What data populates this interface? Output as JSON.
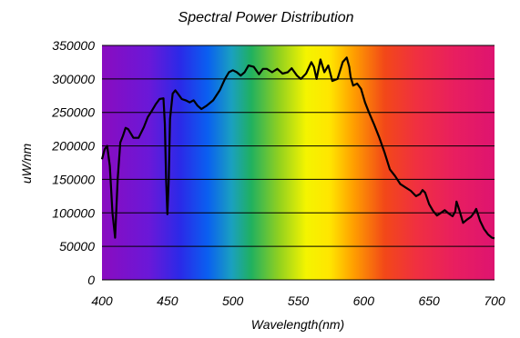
{
  "chart_data": {
    "type": "line",
    "title": "Spectral Power Distribution",
    "xlabel": "Wavelength(nm)",
    "ylabel": "uW/nm",
    "xlim": [
      400,
      700
    ],
    "ylim": [
      0,
      350000
    ],
    "x_ticks": [
      "400",
      "450",
      "500",
      "550",
      "600",
      "650",
      "700"
    ],
    "y_ticks": [
      "0",
      "50000",
      "100000",
      "150000",
      "200000",
      "250000",
      "300000",
      "350000"
    ],
    "grid": true,
    "legend": "none",
    "background": "visible-spectrum gradient",
    "colors": {
      "line": "#000000",
      "grid": "#000000"
    },
    "series": [
      {
        "x": [
          400,
          402,
          404,
          406,
          408,
          410,
          412,
          414,
          416,
          418,
          420,
          424,
          428,
          432,
          435,
          438,
          441,
          444,
          447,
          448,
          449,
          450,
          451,
          452,
          454,
          456,
          458,
          461,
          464,
          467,
          470,
          473,
          476,
          480,
          485,
          490,
          494,
          497,
          500,
          503,
          506,
          509,
          512,
          516,
          520,
          523,
          526,
          530,
          534,
          538,
          542,
          545,
          549,
          552,
          556,
          560,
          562,
          564,
          567,
          570,
          573,
          576,
          580,
          584,
          587,
          589,
          590,
          592,
          595,
          598,
          601,
          604,
          608,
          612,
          616,
          620,
          624,
          628,
          632,
          636,
          640,
          643,
          645,
          647,
          650,
          653,
          656,
          659,
          662,
          665,
          668,
          670,
          671,
          673,
          676,
          679,
          682,
          684,
          686,
          689,
          692,
          695,
          698,
          700
        ],
        "y": [
          180000,
          195000,
          200000,
          170000,
          100000,
          63000,
          150000,
          205000,
          215000,
          227000,
          225000,
          212000,
          212000,
          228000,
          243000,
          252000,
          262000,
          270000,
          271000,
          233000,
          150000,
          98000,
          150000,
          240000,
          278000,
          283000,
          278000,
          270000,
          268000,
          265000,
          268000,
          260000,
          255000,
          260000,
          268000,
          283000,
          300000,
          310000,
          313000,
          310000,
          305000,
          310000,
          320000,
          318000,
          307000,
          315000,
          315000,
          310000,
          315000,
          308000,
          310000,
          316000,
          305000,
          300000,
          308000,
          325000,
          318000,
          300000,
          329000,
          310000,
          320000,
          297000,
          300000,
          325000,
          332000,
          318000,
          303000,
          290000,
          293000,
          285000,
          265000,
          250000,
          232000,
          212000,
          190000,
          165000,
          155000,
          143000,
          138000,
          133000,
          125000,
          128000,
          134000,
          130000,
          113000,
          103000,
          96000,
          100000,
          104000,
          99000,
          95000,
          102000,
          117000,
          105000,
          85000,
          90000,
          94000,
          99000,
          106000,
          88000,
          76000,
          68000,
          63000,
          62000
        ]
      }
    ]
  }
}
